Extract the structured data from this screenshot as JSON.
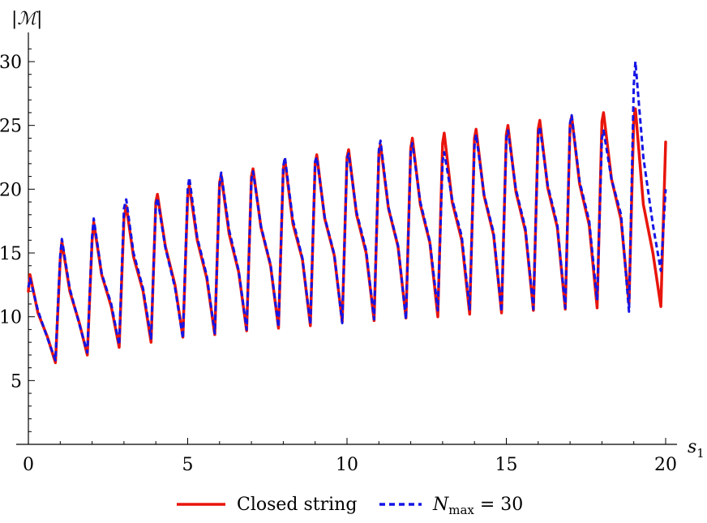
{
  "chart_data": {
    "type": "line",
    "xlabel": "s",
    "xlabel_sub": "1",
    "ylabel": "|ℳ|",
    "xlim": [
      0,
      20
    ],
    "ylim": [
      0,
      32
    ],
    "x_ticks": [
      0,
      5,
      10,
      15,
      20
    ],
    "y_ticks": [
      5,
      10,
      15,
      20,
      25,
      30
    ],
    "x_tick_labels": [
      "0",
      "5",
      "10",
      "15",
      "20"
    ],
    "y_tick_labels": [
      "5",
      "10",
      "15",
      "20",
      "25",
      "30"
    ],
    "legend": {
      "position": "bottom",
      "entries": [
        {
          "text": "Closed string",
          "style": "solid"
        },
        {
          "text_main": "N",
          "text_sub": "max",
          "text_rest": " = 30",
          "style": "dashed"
        }
      ]
    },
    "series": [
      {
        "name": "Closed string",
        "color": "#e8150c",
        "style": "solid",
        "x": [
          0,
          0.05,
          0.3,
          0.6,
          0.85,
          1.0,
          1.05,
          1.3,
          1.6,
          1.85,
          2.0,
          2.05,
          2.3,
          2.6,
          2.85,
          3.0,
          3.07,
          3.3,
          3.6,
          3.85,
          4.0,
          4.05,
          4.3,
          4.6,
          4.85,
          5.0,
          5.05,
          5.3,
          5.6,
          5.85,
          6.0,
          6.05,
          6.3,
          6.6,
          6.85,
          7.0,
          7.05,
          7.3,
          7.6,
          7.85,
          8.0,
          8.05,
          8.3,
          8.6,
          8.85,
          9.0,
          9.05,
          9.3,
          9.6,
          9.85,
          10.0,
          10.05,
          10.3,
          10.6,
          10.85,
          11.0,
          11.05,
          11.3,
          11.6,
          11.85,
          12.0,
          12.05,
          12.3,
          12.6,
          12.85,
          13.0,
          13.05,
          13.3,
          13.6,
          13.85,
          14.0,
          14.05,
          14.3,
          14.6,
          14.85,
          15.0,
          15.05,
          15.3,
          15.6,
          15.85,
          16.0,
          16.05,
          16.3,
          16.6,
          16.85,
          17.0,
          17.05,
          17.3,
          17.6,
          17.85,
          18.0,
          18.05,
          18.3,
          18.6,
          18.85,
          19.0,
          19.05,
          19.3,
          19.6,
          19.85,
          20.0
        ],
        "values": [
          12.0,
          13.3,
          10.3,
          8.4,
          6.4,
          14.5,
          15.9,
          12.0,
          9.5,
          7.0,
          16.0,
          17.4,
          13.3,
          10.8,
          7.6,
          17.7,
          18.7,
          14.7,
          12.0,
          8.0,
          19.0,
          19.6,
          15.5,
          12.5,
          8.4,
          19.5,
          20.3,
          16.0,
          13.0,
          8.6,
          20.5,
          21.1,
          16.5,
          13.5,
          8.9,
          21.0,
          21.6,
          17.0,
          14.0,
          9.1,
          21.6,
          22.3,
          17.3,
          14.5,
          9.3,
          22.0,
          22.7,
          17.7,
          14.8,
          9.6,
          22.5,
          23.1,
          18.0,
          15.0,
          9.7,
          22.8,
          23.5,
          18.5,
          15.5,
          9.9,
          23.2,
          24.0,
          18.8,
          15.8,
          10.0,
          23.6,
          24.4,
          19.0,
          16.0,
          10.2,
          24.0,
          24.7,
          19.5,
          16.4,
          10.3,
          24.3,
          25.0,
          19.8,
          16.7,
          10.5,
          24.7,
          25.4,
          20.1,
          17.0,
          10.6,
          25.0,
          25.7,
          20.4,
          17.2,
          10.7,
          25.3,
          26.0,
          20.8,
          17.6,
          11.0,
          25.6,
          26.3,
          18.8,
          15.0,
          10.8,
          23.7
        ]
      },
      {
        "name": "N_max = 30",
        "color": "#1414e6",
        "style": "dashed",
        "x": [
          0,
          0.05,
          0.3,
          0.6,
          0.85,
          1.0,
          1.05,
          1.3,
          1.6,
          1.85,
          2.0,
          2.05,
          2.3,
          2.6,
          2.85,
          3.0,
          3.07,
          3.3,
          3.6,
          3.85,
          4.0,
          4.05,
          4.3,
          4.6,
          4.85,
          5.0,
          5.05,
          5.3,
          5.6,
          5.85,
          6.0,
          6.05,
          6.3,
          6.6,
          6.85,
          7.0,
          7.05,
          7.3,
          7.6,
          7.85,
          8.0,
          8.05,
          8.3,
          8.6,
          8.85,
          9.0,
          9.05,
          9.3,
          9.6,
          9.85,
          10.0,
          10.05,
          10.3,
          10.6,
          10.85,
          11.0,
          11.05,
          11.3,
          11.6,
          11.85,
          12.0,
          12.05,
          12.3,
          12.6,
          12.85,
          13.0,
          13.05,
          13.3,
          13.6,
          13.85,
          14.0,
          14.05,
          14.3,
          14.6,
          14.85,
          15.0,
          15.05,
          15.3,
          15.6,
          15.85,
          16.0,
          16.05,
          16.3,
          16.6,
          16.85,
          17.0,
          17.05,
          17.3,
          17.6,
          17.85,
          18.0,
          18.05,
          18.3,
          18.6,
          18.85,
          19.0,
          19.05,
          19.3,
          19.6,
          19.85,
          20.0
        ],
        "values": [
          12.3,
          13.0,
          10.5,
          8.3,
          6.6,
          14.8,
          16.1,
          12.2,
          9.4,
          7.2,
          16.3,
          17.7,
          13.4,
          11.0,
          7.8,
          18.5,
          19.2,
          15.0,
          12.2,
          8.3,
          18.8,
          19.3,
          15.4,
          12.3,
          8.3,
          20.0,
          20.9,
          16.2,
          13.2,
          8.7,
          20.3,
          21.3,
          16.8,
          13.6,
          9.0,
          20.7,
          21.4,
          17.1,
          14.1,
          9.2,
          21.8,
          22.5,
          17.6,
          14.6,
          9.4,
          22.2,
          22.5,
          17.8,
          14.9,
          9.5,
          22.4,
          22.8,
          18.2,
          15.2,
          9.8,
          23.1,
          23.8,
          18.6,
          15.6,
          9.8,
          23.0,
          23.6,
          19.0,
          15.9,
          10.5,
          22.2,
          22.9,
          19.2,
          16.3,
          10.6,
          23.4,
          24.3,
          19.6,
          16.6,
          10.4,
          24.0,
          24.6,
          20.0,
          16.9,
          10.6,
          24.3,
          24.9,
          20.3,
          17.2,
          10.7,
          25.2,
          25.8,
          20.6,
          17.5,
          11.3,
          24.0,
          24.6,
          20.8,
          18.0,
          10.4,
          28.2,
          30.0,
          22.5,
          17.2,
          13.6,
          20.0
        ]
      }
    ]
  }
}
